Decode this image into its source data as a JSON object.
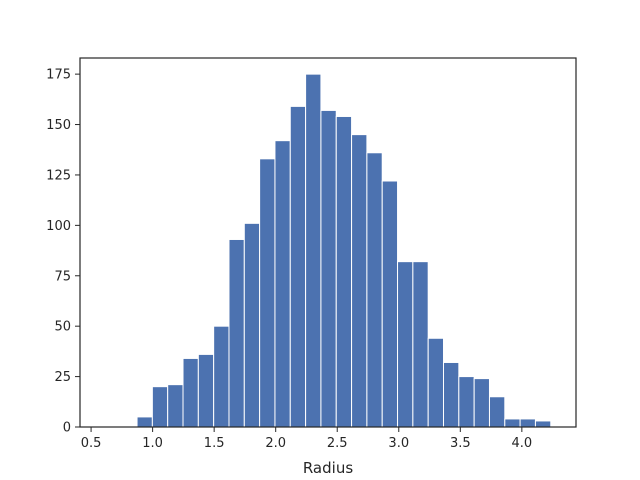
{
  "chart_data": {
    "type": "bar",
    "title": "",
    "xlabel": "Radius",
    "ylabel": "",
    "xlim": [
      0.41,
      4.44
    ],
    "ylim": [
      0,
      183
    ],
    "xticks": [
      0.5,
      1.0,
      1.5,
      2.0,
      2.5,
      3.0,
      3.5,
      4.0
    ],
    "xtick_labels": [
      "0.5",
      "1.0",
      "1.5",
      "2.0",
      "2.5",
      "3.0",
      "3.5",
      "4.0"
    ],
    "yticks": [
      0,
      25,
      50,
      75,
      100,
      125,
      150,
      175
    ],
    "ytick_labels": [
      "0",
      "25",
      "50",
      "75",
      "100",
      "125",
      "150",
      "175"
    ],
    "bin_start": 0.5,
    "bin_width": 0.1245,
    "values": [
      0,
      0,
      0,
      5,
      20,
      21,
      34,
      36,
      50,
      93,
      101,
      133,
      142,
      159,
      175,
      157,
      154,
      145,
      136,
      122,
      82,
      82,
      44,
      32,
      25,
      24,
      15,
      4,
      4,
      3
    ],
    "grid": false,
    "color": "#4c72b0"
  }
}
